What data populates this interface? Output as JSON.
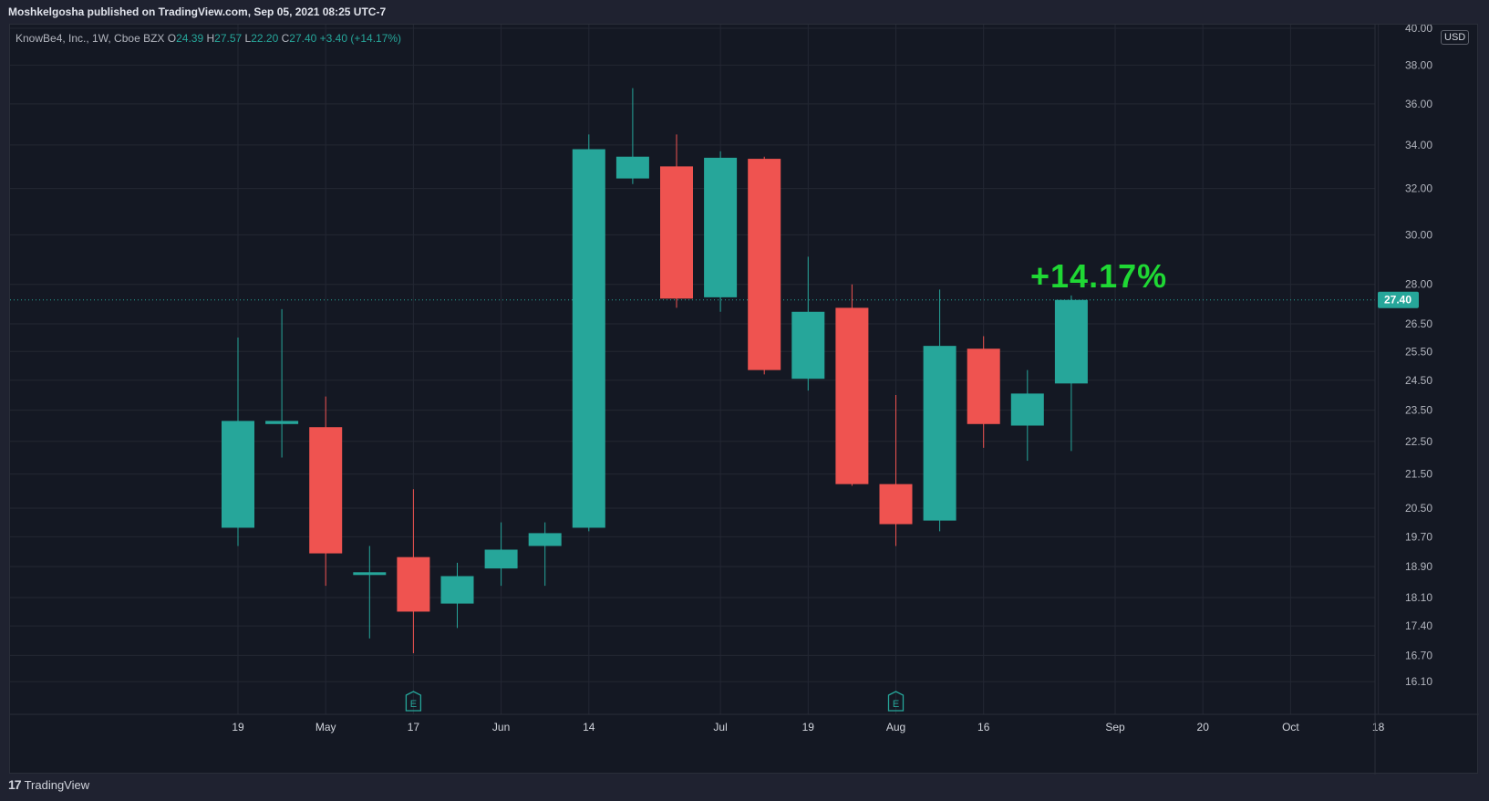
{
  "header": {
    "published_by": "Moshkelgosha published on TradingView.com, Sep 05, 2021 08:25 UTC-7"
  },
  "legend": {
    "symbol": "KnowBe4, Inc., 1W, Cboe BZX",
    "open_label": "O",
    "open": "24.39",
    "high_label": "H",
    "high": "27.57",
    "low_label": "L",
    "low": "22.20",
    "close_label": "C",
    "close": "27.40",
    "change": "+3.40 (+14.17%)"
  },
  "currency": "USD",
  "annotation": "+14.17%",
  "footer": {
    "brand": "TradingView"
  },
  "colors": {
    "up": "#26a69a",
    "down": "#ef5350",
    "annotation": "#1fd834",
    "background": "#141823",
    "grid": "#232733"
  },
  "chart_data": {
    "type": "candlestick",
    "scale": "log",
    "ylim": [
      15.7,
      40.0
    ],
    "yticks": [
      "40.00",
      "38.00",
      "36.00",
      "34.00",
      "32.00",
      "30.00",
      "28.00",
      "26.50",
      "25.50",
      "24.50",
      "23.50",
      "22.50",
      "21.50",
      "20.50",
      "19.70",
      "18.90",
      "18.10",
      "17.40",
      "16.70",
      "16.10"
    ],
    "xticks": [
      "19",
      "May",
      "17",
      "Jun",
      "14",
      "Jul",
      "19",
      "Aug",
      "16",
      "Sep",
      "20",
      "Oct",
      "18"
    ],
    "last_price": "27.40",
    "earnings_markers": [
      "E",
      "E"
    ],
    "candles": [
      {
        "o": 19.95,
        "h": 26.0,
        "l": 19.45,
        "c": 23.15
      },
      {
        "o": 23.05,
        "h": 27.05,
        "l": 22.0,
        "c": 23.15
      },
      {
        "o": 22.95,
        "h": 23.95,
        "l": 18.4,
        "c": 19.25
      },
      {
        "o": 18.7,
        "h": 19.45,
        "l": 17.1,
        "c": 18.75
      },
      {
        "o": 19.15,
        "h": 21.05,
        "l": 16.75,
        "c": 17.75
      },
      {
        "o": 17.95,
        "h": 19.0,
        "l": 17.35,
        "c": 18.65
      },
      {
        "o": 18.85,
        "h": 20.1,
        "l": 18.4,
        "c": 19.35
      },
      {
        "o": 19.45,
        "h": 20.1,
        "l": 18.4,
        "c": 19.8
      },
      {
        "o": 19.95,
        "h": 34.5,
        "l": 19.85,
        "c": 33.8
      },
      {
        "o": 32.45,
        "h": 36.8,
        "l": 32.2,
        "c": 33.45
      },
      {
        "o": 33.0,
        "h": 34.5,
        "l": 27.1,
        "c": 27.45
      },
      {
        "o": 27.5,
        "h": 33.7,
        "l": 26.95,
        "c": 33.4
      },
      {
        "o": 33.35,
        "h": 33.45,
        "l": 24.7,
        "c": 24.85
      },
      {
        "o": 24.55,
        "h": 29.1,
        "l": 24.15,
        "c": 26.95
      },
      {
        "o": 27.1,
        "h": 28.0,
        "l": 21.15,
        "c": 21.2
      },
      {
        "o": 21.2,
        "h": 24.0,
        "l": 19.45,
        "c": 20.05
      },
      {
        "o": 20.15,
        "h": 27.8,
        "l": 19.85,
        "c": 25.7
      },
      {
        "o": 25.6,
        "h": 26.05,
        "l": 22.3,
        "c": 23.05
      },
      {
        "o": 23.0,
        "h": 24.85,
        "l": 21.9,
        "c": 24.05
      },
      {
        "o": 24.39,
        "h": 27.57,
        "l": 22.2,
        "c": 27.4
      }
    ]
  }
}
